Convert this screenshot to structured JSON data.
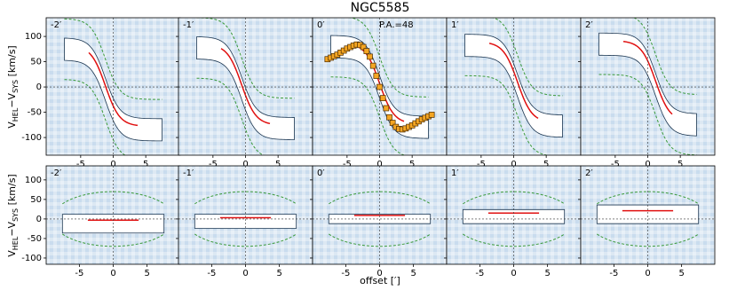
{
  "figure": {
    "title": "NGC5585",
    "x_label": "offset [′]",
    "y_label_parts": [
      "V",
      "HEL",
      "−V",
      "SYS",
      " [km/s]"
    ]
  },
  "chart_data": [
    {
      "type": "pv",
      "label": "-2′",
      "xlim": [
        -10.3,
        10.3
      ],
      "ylim": [
        -135,
        137
      ],
      "xticks": [
        -5,
        0,
        5
      ],
      "yticks": [
        -100,
        -50,
        0,
        50,
        100
      ],
      "ytick_labels": true
    },
    {
      "type": "pv",
      "label": "-1′",
      "xlim": [
        -10.3,
        10.3
      ],
      "ylim": [
        -135,
        137
      ],
      "xticks": [
        -5,
        0,
        5
      ],
      "yticks": [
        -100,
        -50,
        0,
        50,
        100
      ],
      "ytick_labels": false
    },
    {
      "type": "pv",
      "label": "0′",
      "annotation": "P.A.=48",
      "xlim": [
        -10.3,
        10.3
      ],
      "ylim": [
        -135,
        137
      ],
      "xticks": [
        -5,
        0,
        5
      ],
      "yticks": [
        -100,
        -50,
        0,
        50,
        100
      ],
      "ytick_labels": false,
      "series": [
        {
          "color": "#f5a623",
          "x": [
            -8,
            -7.5,
            -7,
            -6.5,
            -6,
            -5.5,
            -5,
            -4.5,
            -4,
            -3.5,
            -3,
            -2.5,
            -2,
            -1.5,
            -1,
            -0.5,
            0,
            0.5,
            1,
            1.5,
            2,
            2.5,
            3,
            3.5,
            4,
            4.5,
            5,
            5.5,
            6,
            6.5,
            7,
            7.5,
            8
          ],
          "values": [
            55,
            58,
            61,
            64,
            68,
            72,
            76,
            79,
            82,
            84,
            83,
            79,
            71,
            60,
            42,
            22,
            0,
            -22,
            -42,
            -60,
            -71,
            -79,
            -83,
            -84,
            -82,
            -79,
            -76,
            -72,
            -68,
            -64,
            -61,
            -58,
            -55
          ]
        }
      ]
    },
    {
      "type": "pv",
      "label": "1′",
      "xlim": [
        -10.3,
        10.3
      ],
      "ylim": [
        -135,
        137
      ],
      "xticks": [
        -5,
        0,
        5
      ],
      "yticks": [
        -100,
        -50,
        0,
        50,
        100
      ],
      "ytick_labels": false
    },
    {
      "type": "pv",
      "label": "2′",
      "xlim": [
        -10.3,
        10.3
      ],
      "ylim": [
        -135,
        137
      ],
      "xticks": [
        -5,
        0,
        5
      ],
      "yticks": [
        -100,
        -50,
        0,
        50,
        100
      ],
      "ytick_labels": false
    },
    {
      "type": "pv",
      "label": "-2′",
      "xlim": [
        -9.9,
        9.9
      ],
      "ylim": [
        -116,
        136
      ],
      "xticks": [
        -5,
        0,
        5
      ],
      "yticks": [
        -100,
        -50,
        0,
        50,
        100
      ],
      "ytick_labels": true
    },
    {
      "type": "pv",
      "label": "-1′",
      "xlim": [
        -9.9,
        9.9
      ],
      "ylim": [
        -116,
        136
      ],
      "xticks": [
        -5,
        0,
        5
      ],
      "yticks": [
        -100,
        -50,
        0,
        50,
        100
      ],
      "ytick_labels": false
    },
    {
      "type": "pv",
      "label": "0′",
      "xlim": [
        -9.9,
        9.9
      ],
      "ylim": [
        -116,
        136
      ],
      "xticks": [
        -5,
        0,
        5
      ],
      "yticks": [
        -100,
        -50,
        0,
        50,
        100
      ],
      "ytick_labels": false
    },
    {
      "type": "pv",
      "label": "1′",
      "xlim": [
        -9.9,
        9.9
      ],
      "ylim": [
        -116,
        136
      ],
      "xticks": [
        -5,
        0,
        5
      ],
      "yticks": [
        -100,
        -50,
        0,
        50,
        100
      ],
      "ytick_labels": false
    },
    {
      "type": "pv",
      "label": "2′",
      "xlim": [
        -9.9,
        9.9
      ],
      "ylim": [
        -116,
        136
      ],
      "xticks": [
        -5,
        0,
        5
      ],
      "yticks": [
        -100,
        -50,
        0,
        50,
        100
      ],
      "ytick_labels": false
    }
  ]
}
